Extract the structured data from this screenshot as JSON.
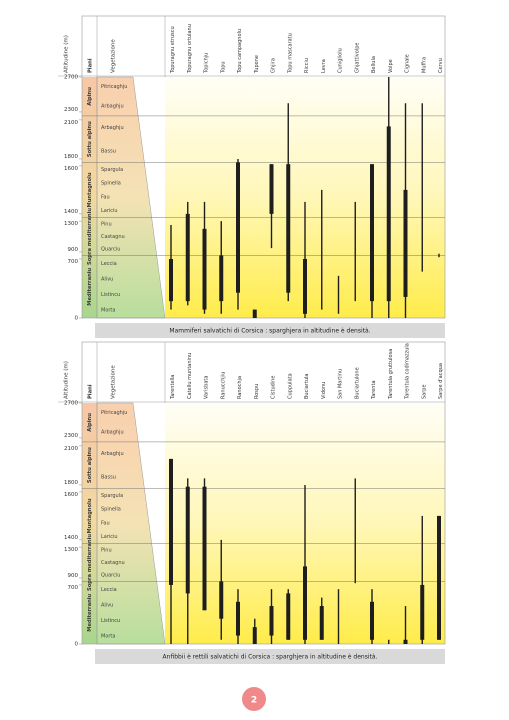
{
  "chart_data": [
    {
      "type": "range",
      "y_label": "Altitudine (m)",
      "zone_header": "Piani",
      "vegetation_header": "Vegetazione",
      "caption": "Mammiferi salvatichi di Corsica : sparghjera in altitudine è densità.",
      "ylim": [
        0,
        2700
      ],
      "yticks": [
        0,
        700,
        900,
        1300,
        1400,
        1600,
        1800,
        2100,
        2300,
        2700
      ],
      "zones": [
        {
          "name": "Alpinu",
          "plants": [
            "Pitricaghju",
            "Arbaghju"
          ]
        },
        {
          "name": "Sottu alpinu",
          "plants": [
            "Arbaghju",
            "Bassu"
          ]
        },
        {
          "name": "Muntagnolu",
          "plants": [
            "Spargula",
            "Spinella",
            "Fau",
            "Lariciu"
          ]
        },
        {
          "name": "Sopra mediterraniu",
          "plants": [
            "Pinu",
            "Castagnu",
            "Quarciu"
          ]
        },
        {
          "name": "Mediterraniu",
          "plants": [
            "Leccia",
            "Alivu",
            "Listincu",
            "Morta"
          ]
        }
      ],
      "categories": [
        "Topuragnu etruscu",
        "Topuragnu ortulanu",
        "Topichju",
        "Topu",
        "Topu campagnolu",
        "Tupone",
        "Ghjira",
        "Topu mascaratu",
        "Ricciu",
        "Levra",
        "Cunigliolu",
        "Ghjattivolpe",
        "Bellula",
        "Volpe",
        "Cignale",
        "Muffra",
        "Cervu"
      ],
      "low": [
        100,
        150,
        50,
        50,
        100,
        0,
        950,
        200,
        0,
        100,
        50,
        200,
        0,
        0,
        0,
        550,
        750
      ],
      "high": [
        1250,
        1450,
        1450,
        1300,
        1800,
        100,
        1650,
        2400,
        1450,
        1500,
        500,
        1450,
        1650,
        2700,
        2400,
        2400,
        850
      ],
      "dense_low": [
        200,
        200,
        100,
        200,
        300,
        0,
        1400,
        300,
        50,
        null,
        null,
        null,
        200,
        200,
        250,
        null,
        null
      ],
      "dense_high": [
        700,
        1400,
        1200,
        800,
        1700,
        100,
        1650,
        1650,
        700,
        null,
        null,
        null,
        1650,
        2050,
        1500,
        null,
        null
      ],
      "color": "#1e1e1e"
    },
    {
      "type": "range",
      "y_label": "Altitudine (m)",
      "zone_header": "Piani",
      "vegetation_header": "Vegetazione",
      "caption": "Anfibbii è rettili salvatichi di Corsica : sparghjera in altitudine è densità.",
      "ylim": [
        0,
        2700
      ],
      "yticks": [
        0,
        700,
        900,
        1300,
        1400,
        1600,
        1800,
        2100,
        2300,
        2700
      ],
      "zones": [
        {
          "name": "Alpinu",
          "plants": [
            "Pitricaghju",
            "Arbaghju"
          ]
        },
        {
          "name": "Sottu alpinu",
          "plants": [
            "Arbaghju",
            "Bassu"
          ]
        },
        {
          "name": "Muntagnolu",
          "plants": [
            "Spargula",
            "Spinella",
            "Fau",
            "Lariciu"
          ]
        },
        {
          "name": "Sopra mediterraniu",
          "plants": [
            "Pinu",
            "Castagnu",
            "Quarciu"
          ]
        },
        {
          "name": "Mediterraniu",
          "plants": [
            "Leccia",
            "Alivu",
            "Listincu",
            "Morta"
          ]
        }
      ],
      "categories": [
        "Tarentella",
        "Catellu muntaninu",
        "Varisbata",
        "Ranucchjiu",
        "Ranochja",
        "Rospu",
        "Cistudine",
        "Cuppulata",
        "Buciartula",
        "Vidonu",
        "San Martinu",
        "Buciartulone",
        "Tarenta",
        "Tarentula gruttulosa",
        "Tarentula codimazzula",
        "Sarpe",
        "Sarpe d'acqua"
      ],
      "low": [
        0,
        0,
        400,
        50,
        0,
        0,
        0,
        50,
        0,
        50,
        0,
        750,
        0,
        0,
        0,
        0,
        50
      ],
      "high": [
        2000,
        1850,
        1850,
        1400,
        650,
        300,
        650,
        650,
        1800,
        550,
        650,
        1850,
        650,
        50,
        450,
        1500,
        1500
      ],
      "dense_low": [
        700,
        600,
        400,
        300,
        100,
        0,
        100,
        50,
        50,
        50,
        null,
        null,
        50,
        null,
        0,
        50,
        50
      ],
      "dense_high": [
        2000,
        1750,
        1750,
        800,
        500,
        200,
        450,
        600,
        1050,
        450,
        null,
        null,
        500,
        null,
        50,
        700,
        1500
      ],
      "color": "#1e1e1e"
    }
  ],
  "page_number": "2"
}
